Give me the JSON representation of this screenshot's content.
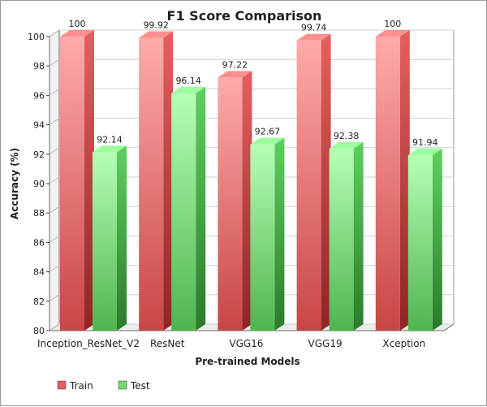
{
  "chart_data": {
    "type": "bar",
    "title": "F1 Score Comparison",
    "xlabel": "Pre-trained Models",
    "ylabel": "Accuracy (%)",
    "categories": [
      "Inception_ResNet_V2",
      "ResNet",
      "VGG16",
      "VGG19",
      "Xception"
    ],
    "series": [
      {
        "name": "Train",
        "values": [
          100,
          99.92,
          97.22,
          99.74,
          100
        ],
        "value_labels": [
          "100",
          "99.92",
          "97.22",
          "99.74",
          "100"
        ],
        "color": "#e35b5b"
      },
      {
        "name": "Test",
        "values": [
          92.14,
          96.14,
          92.67,
          92.38,
          91.94
        ],
        "value_labels": [
          "92.14",
          "96.14",
          "92.67",
          "92.38",
          "91.94"
        ],
        "color": "#6fdc6f"
      }
    ],
    "ylim": [
      80,
      100
    ],
    "yticks": [
      "80",
      "82",
      "84",
      "86",
      "88",
      "90",
      "92",
      "94",
      "96",
      "98",
      "100"
    ],
    "grid": true,
    "legend_position": "bottom-left",
    "style": "3d"
  }
}
